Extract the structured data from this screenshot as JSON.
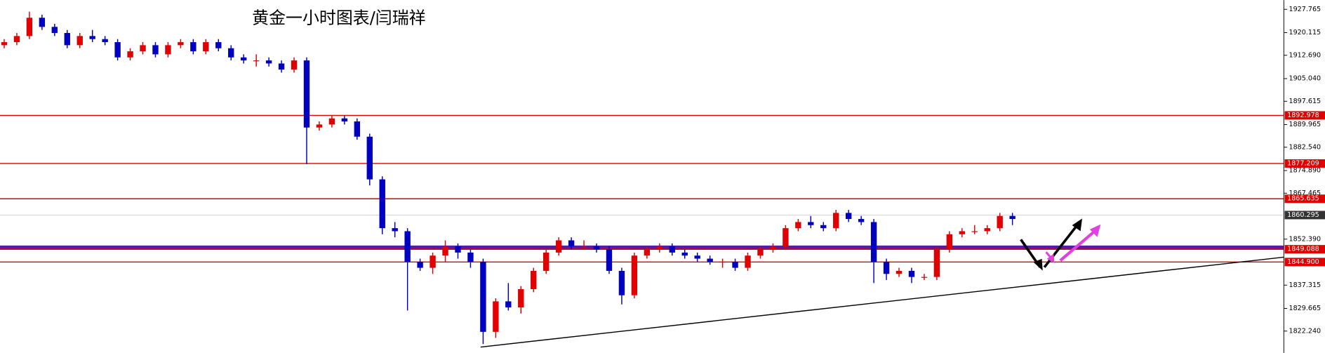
{
  "chart_data": {
    "type": "candlestick",
    "title": "黄金一小时图表/闫瑞祥",
    "up_color": "#e00000",
    "down_color": "#0000c0",
    "ylim": [
      1815.08,
      1930.8
    ],
    "yticks": [
      1927.765,
      1920.115,
      {
        "value": 1912.69,
        "label": "1912.690"
      },
      {
        "value": 1905.04,
        "label": "1905.040"
      },
      1897.615,
      1889.965,
      {
        "value": 1882.54,
        "label": "1882.540"
      },
      {
        "value": 1874.89,
        "label": "1874.890"
      },
      1867.465,
      {
        "value": 1852.39,
        "label": "1852.390"
      },
      1837.315,
      1829.665,
      {
        "value": 1822.24,
        "label": "1822.240"
      }
    ],
    "open": [
      1916,
      1917,
      1919,
      1925,
      1922,
      1920,
      1916,
      1919,
      1918,
      1917,
      1912,
      1914,
      1916,
      1913,
      1916,
      1917,
      1914,
      1917,
      1915,
      1912,
      1911,
      1911,
      1910,
      1908,
      1911,
      1889,
      1890,
      1892,
      1891,
      1886,
      1872,
      1856,
      1855,
      1845,
      1843,
      1847,
      1850,
      1848,
      1845,
      1822,
      1832,
      1830,
      1836,
      1842,
      1848,
      1852,
      1850,
      1850,
      1849,
      1842,
      1834,
      1847,
      1849,
      1850,
      1848,
      1847,
      1846,
      1845,
      1845,
      1843,
      1847,
      1849,
      1850,
      1856,
      1858,
      1857,
      1856,
      1861,
      1859,
      1858,
      1845,
      1841,
      1842,
      1840,
      1840,
      1849,
      1854,
      1855,
      1855,
      1856,
      1860
    ],
    "high": [
      1918,
      1920,
      1927,
      1926,
      1923,
      1921,
      1920,
      1921,
      1919,
      1918,
      1915,
      1917,
      1917,
      1917,
      1918,
      1918,
      1918,
      1918,
      1916,
      1913,
      1913,
      1912,
      1911,
      1912,
      1912,
      1891,
      1893,
      1893,
      1892,
      1887,
      1873,
      1858,
      1856,
      1846,
      1848,
      1852,
      1851,
      1849,
      1846,
      1833,
      1838,
      1837,
      1843,
      1849,
      1853,
      1853,
      1852,
      1851,
      1850,
      1843,
      1848,
      1850,
      1851,
      1851,
      1849,
      1848,
      1847,
      1846,
      1846,
      1848,
      1850,
      1851,
      1857,
      1859,
      1860,
      1858,
      1862,
      1862,
      1860,
      1859,
      1846,
      1843,
      1843,
      1841,
      1850,
      1855,
      1856,
      1857,
      1857,
      1861,
      1861
    ],
    "low": [
      1915,
      1916,
      1918,
      1921,
      1919,
      1915,
      1915,
      1917,
      1916,
      1911,
      1911,
      1913,
      1912,
      1912,
      1915,
      1913,
      1913,
      1914,
      1911,
      1910,
      1909,
      1909,
      1907,
      1907,
      1877,
      1888,
      1889,
      1890,
      1885,
      1870,
      1854,
      1853,
      1829,
      1842,
      1841,
      1845,
      1846,
      1843,
      1818,
      1820,
      1829,
      1828,
      1835,
      1841,
      1847,
      1849,
      1849,
      1848,
      1841,
      1831,
      1833,
      1846,
      1848,
      1847,
      1846,
      1845,
      1844,
      1843,
      1842,
      1842,
      1846,
      1848,
      1849,
      1855,
      1856,
      1855,
      1855,
      1858,
      1857,
      1838,
      1839,
      1840,
      1838,
      1839,
      1839,
      1848,
      1853,
      1854,
      1854,
      1855,
      1857
    ],
    "close": [
      1917,
      1919,
      1925,
      1922,
      1920,
      1916,
      1919,
      1918,
      1917,
      1912,
      1914,
      1916,
      1913,
      1916,
      1917,
      1914,
      1917,
      1915,
      1912,
      1911,
      1911,
      1910,
      1908,
      1911,
      1889,
      1890,
      1892,
      1891,
      1886,
      1872,
      1856,
      1855,
      1845,
      1843,
      1847,
      1850,
      1848,
      1845,
      1822,
      1832,
      1830,
      1836,
      1842,
      1848,
      1852,
      1850,
      1850,
      1849,
      1842,
      1834,
      1847,
      1849,
      1850,
      1848,
      1847,
      1846,
      1845,
      1845,
      1843,
      1847,
      1849,
      1850,
      1856,
      1858,
      1857,
      1856,
      1861,
      1859,
      1858,
      1845,
      1841,
      1842,
      1840,
      1840,
      1849,
      1854,
      1855,
      1855,
      1856,
      1860,
      1859
    ],
    "levels": [
      {
        "value": 1892.978,
        "label": 1892.978,
        "color": "#e00000"
      },
      {
        "value": 1877.209,
        "label": 1877.209,
        "color": "#e00000"
      },
      {
        "value": 1865.635,
        "label": 1865.635,
        "color": "#e00000"
      },
      {
        "value": 1849.088,
        "label": 1849.088,
        "color": "#e00000"
      },
      {
        "value": 1844.9,
        "label": "1844.900",
        "color": "#e00000"
      }
    ],
    "band": {
      "value": 1849.6,
      "color": "#5a1aa8"
    },
    "current_price": {
      "value": 1860.295,
      "label": 1860.295,
      "color": "#333333"
    }
  }
}
